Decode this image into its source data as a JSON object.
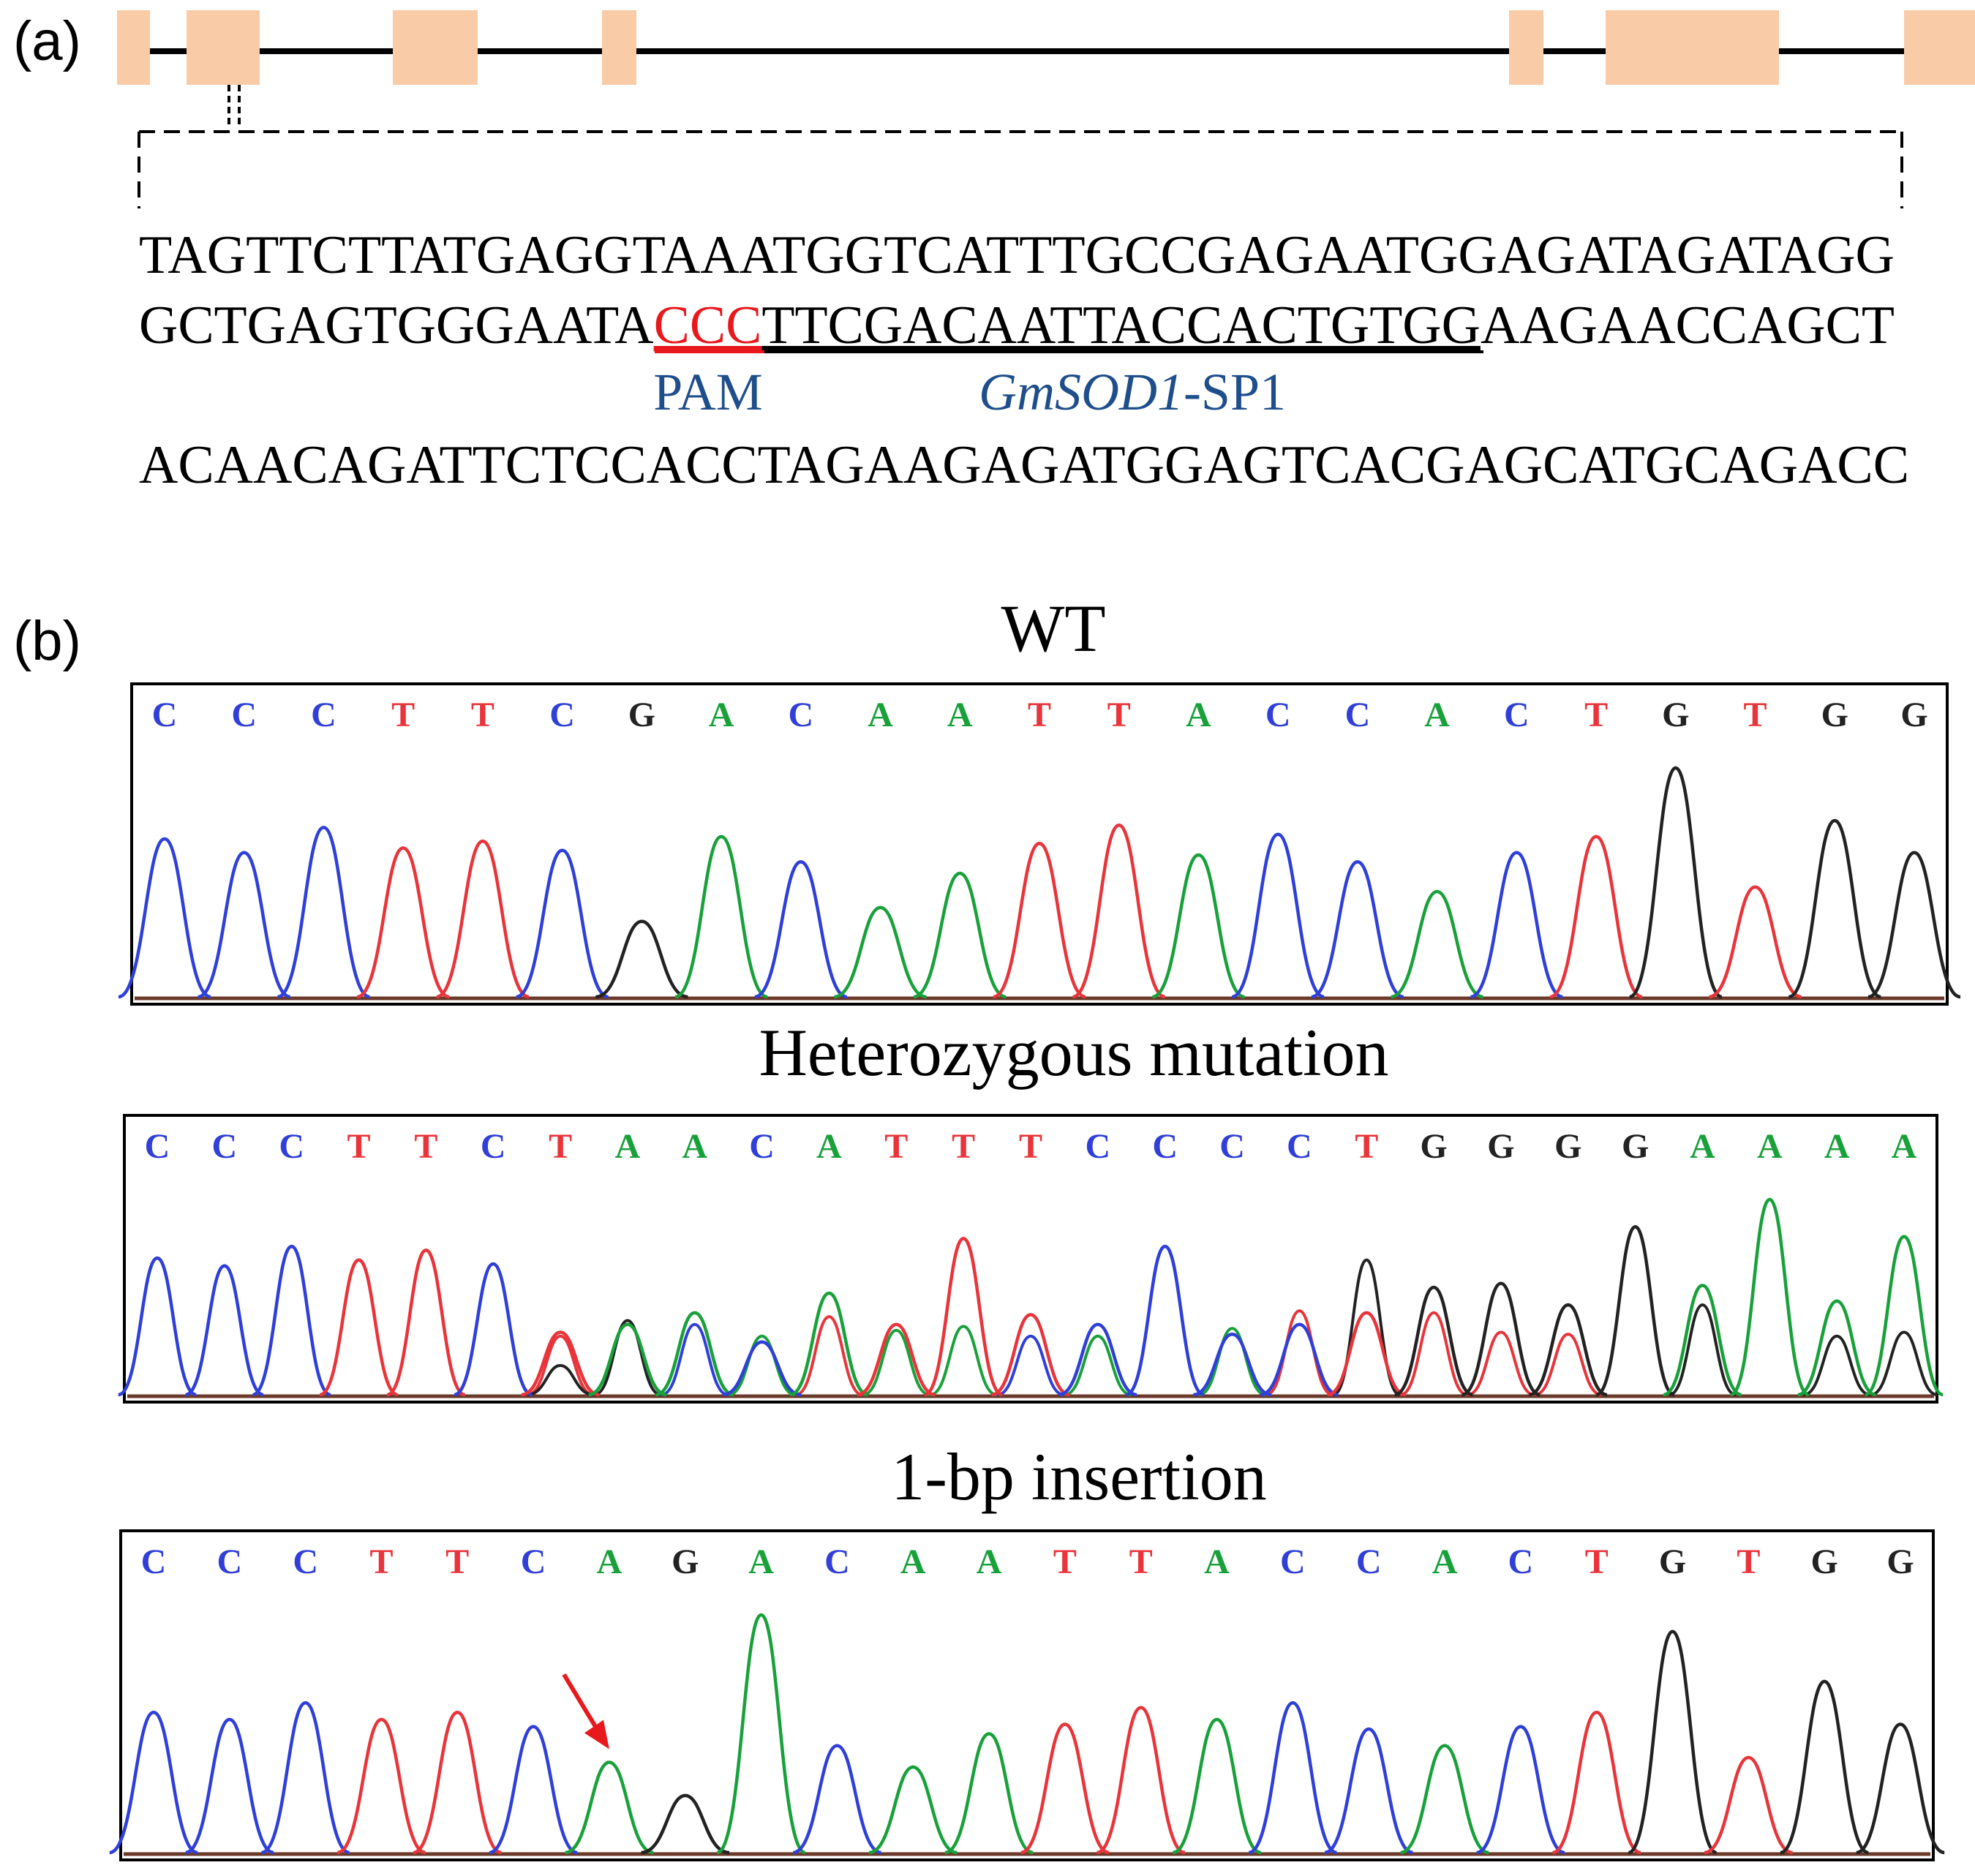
{
  "panel_a": {
    "label": "(a)",
    "gene_model": {
      "exon_color": "#f9cba7",
      "exons": [
        {
          "name": "exon-1",
          "start": 160,
          "end": 205
        },
        {
          "name": "exon-2",
          "start": 255,
          "end": 355
        },
        {
          "name": "exon-3",
          "start": 537,
          "end": 653
        },
        {
          "name": "exon-4",
          "start": 823,
          "end": 870
        },
        {
          "name": "exon-5",
          "start": 2063,
          "end": 2110
        },
        {
          "name": "exon-6",
          "start": 2195,
          "end": 2432
        },
        {
          "name": "exon-7",
          "start": 2603,
          "end": 2700
        }
      ]
    },
    "sequence": {
      "line1": "TAGTTCTTATGAGGTAAATGGTCATTTGCCGAGAATGGAGATAGATAGG",
      "line2_before": "GCTGAGTGGGAATA",
      "line2_pam": "CCC",
      "line2_target": "TTCGACAATTACCACTGTGG",
      "line2_after": "AAGAACCAGCT",
      "pam_label": "PAM",
      "target_label_italic": "GmSOD1",
      "target_label_suffix": "-SP1",
      "line3": "ACAACAGATTCTCCACCTAGAAGAGATGGAGTCACGAGCATGCAGACC"
    },
    "colors": {
      "pam": "#e8191d",
      "label_blue": "#1f4e8c"
    }
  },
  "panel_b": {
    "label": "(b)",
    "base_colors": {
      "A": "#18a13a",
      "C": "#2f3fd8",
      "G": "#222222",
      "T": "#e8343a"
    },
    "traces": [
      {
        "title": "WT",
        "bases": [
          "C",
          "C",
          "C",
          "T",
          "T",
          "C",
          "G",
          "A",
          "C",
          "A",
          "A",
          "T",
          "T",
          "A",
          "C",
          "C",
          "A",
          "C",
          "T",
          "G",
          "T",
          "G",
          "G"
        ],
        "peaks": [
          {
            "base": "C",
            "h": 0.69
          },
          {
            "base": "C",
            "h": 0.63
          },
          {
            "base": "C",
            "h": 0.74
          },
          {
            "base": "T",
            "h": 0.65
          },
          {
            "base": "T",
            "h": 0.68
          },
          {
            "base": "C",
            "h": 0.64
          },
          {
            "base": "G",
            "h": 0.33
          },
          {
            "base": "A",
            "h": 0.7
          },
          {
            "base": "C",
            "h": 0.59
          },
          {
            "base": "A",
            "h": 0.39
          },
          {
            "base": "A",
            "h": 0.54
          },
          {
            "base": "T",
            "h": 0.67
          },
          {
            "base": "T",
            "h": 0.75
          },
          {
            "base": "A",
            "h": 0.62
          },
          {
            "base": "C",
            "h": 0.71
          },
          {
            "base": "C",
            "h": 0.59
          },
          {
            "base": "A",
            "h": 0.46
          },
          {
            "base": "C",
            "h": 0.63
          },
          {
            "base": "T",
            "h": 0.7
          },
          {
            "base": "G",
            "h": 1.0
          },
          {
            "base": "T",
            "h": 0.48
          },
          {
            "base": "G",
            "h": 0.77
          },
          {
            "base": "G",
            "h": 0.63
          }
        ]
      },
      {
        "title": "Heterozygous mutation",
        "bases": [
          "C",
          "C",
          "C",
          "T",
          "T",
          "C",
          "T",
          "A",
          "A",
          "C",
          "A",
          "T",
          "T",
          "T",
          "C",
          "C",
          "C",
          "C",
          "T",
          "G",
          "G",
          "G",
          "G",
          "A",
          "A",
          "A",
          "A"
        ],
        "peaks": [
          {
            "base": "C",
            "h": 0.7
          },
          {
            "base": "C",
            "h": 0.66
          },
          {
            "base": "C",
            "h": 0.76
          },
          {
            "base": "T",
            "h": 0.69
          },
          {
            "base": "T",
            "h": 0.74
          },
          {
            "base": "C",
            "h": 0.67
          },
          {
            "base": "T",
            "h": 0.32
          },
          {
            "base": "A",
            "h": 0.36
          },
          {
            "base": "A",
            "h": 0.42
          },
          {
            "base": "C",
            "h": 0.27
          },
          {
            "base": "A",
            "h": 0.52
          },
          {
            "base": "T",
            "h": 0.36
          },
          {
            "base": "T",
            "h": 0.8
          },
          {
            "base": "T",
            "h": 0.41
          },
          {
            "base": "C",
            "h": 0.36
          },
          {
            "base": "C",
            "h": 0.76
          },
          {
            "base": "C",
            "h": 0.31
          },
          {
            "base": "C",
            "h": 0.36
          },
          {
            "base": "T",
            "h": 0.42
          },
          {
            "base": "G",
            "h": 0.55
          },
          {
            "base": "G",
            "h": 0.57
          },
          {
            "base": "G",
            "h": 0.46
          },
          {
            "base": "G",
            "h": 0.86
          },
          {
            "base": "A",
            "h": 0.56
          },
          {
            "base": "A",
            "h": 1.0
          },
          {
            "base": "A",
            "h": 0.48
          },
          {
            "base": "A",
            "h": 0.81
          }
        ],
        "secondary_peaks": [
          {
            "pos": 6,
            "base": "T",
            "h": 0.3
          },
          {
            "pos": 6,
            "base": "G",
            "h": 0.15
          },
          {
            "pos": 7,
            "base": "G",
            "h": 0.38
          },
          {
            "pos": 8,
            "base": "C",
            "h": 0.36
          },
          {
            "pos": 9,
            "base": "A",
            "h": 0.3
          },
          {
            "pos": 10,
            "base": "T",
            "h": 0.4
          },
          {
            "pos": 11,
            "base": "A",
            "h": 0.33
          },
          {
            "pos": 12,
            "base": "A",
            "h": 0.35
          },
          {
            "pos": 13,
            "base": "C",
            "h": 0.3
          },
          {
            "pos": 14,
            "base": "A",
            "h": 0.3
          },
          {
            "pos": 16,
            "base": "A",
            "h": 0.34
          },
          {
            "pos": 17,
            "base": "T",
            "h": 0.43
          },
          {
            "pos": 18,
            "base": "G",
            "h": 0.69
          },
          {
            "pos": 19,
            "base": "T",
            "h": 0.42
          },
          {
            "pos": 20,
            "base": "T",
            "h": 0.32
          },
          {
            "pos": 21,
            "base": "T",
            "h": 0.31
          },
          {
            "pos": 23,
            "base": "G",
            "h": 0.46
          },
          {
            "pos": 25,
            "base": "G",
            "h": 0.3
          },
          {
            "pos": 26,
            "base": "G",
            "h": 0.32
          }
        ]
      },
      {
        "title": "1-bp insertion",
        "bases": [
          "C",
          "C",
          "C",
          "T",
          "T",
          "C",
          "A",
          "G",
          "A",
          "C",
          "A",
          "A",
          "T",
          "T",
          "A",
          "C",
          "C",
          "A",
          "C",
          "T",
          "G",
          "T",
          "G",
          "G"
        ],
        "peaks": [
          {
            "base": "C",
            "h": 0.59
          },
          {
            "base": "C",
            "h": 0.56
          },
          {
            "base": "C",
            "h": 0.63
          },
          {
            "base": "T",
            "h": 0.56
          },
          {
            "base": "T",
            "h": 0.59
          },
          {
            "base": "C",
            "h": 0.53
          },
          {
            "base": "A",
            "h": 0.38
          },
          {
            "base": "G",
            "h": 0.24
          },
          {
            "base": "A",
            "h": 1.0
          },
          {
            "base": "C",
            "h": 0.45
          },
          {
            "base": "A",
            "h": 0.36
          },
          {
            "base": "A",
            "h": 0.5
          },
          {
            "base": "T",
            "h": 0.54
          },
          {
            "base": "T",
            "h": 0.61
          },
          {
            "base": "A",
            "h": 0.56
          },
          {
            "base": "C",
            "h": 0.63
          },
          {
            "base": "C",
            "h": 0.52
          },
          {
            "base": "A",
            "h": 0.45
          },
          {
            "base": "C",
            "h": 0.53
          },
          {
            "base": "T",
            "h": 0.59
          },
          {
            "base": "G",
            "h": 0.93
          },
          {
            "base": "T",
            "h": 0.4
          },
          {
            "base": "G",
            "h": 0.72
          },
          {
            "base": "G",
            "h": 0.54
          }
        ],
        "arrow_at_peak": 6,
        "arrow_color": "#e8191d"
      }
    ]
  }
}
